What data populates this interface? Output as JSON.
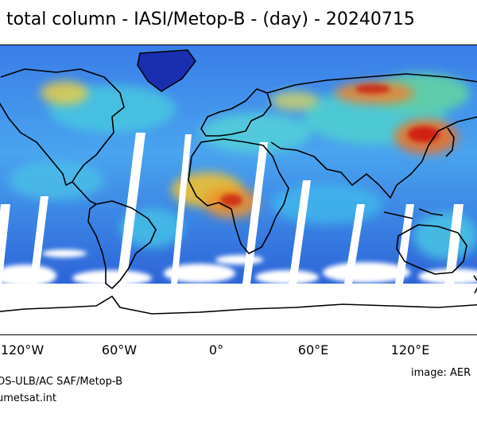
{
  "title": "total column - IASI/Metop-B - (day) - 20240715",
  "x_ticks": [
    "120°W",
    "60°W",
    "0°",
    "60°E",
    "120°E"
  ],
  "credits": {
    "source": "OS-ULB/AC SAF/Metop-B",
    "site": "umetsat.int",
    "image": "image: AER"
  },
  "colors": {
    "ocean_low": "#2f6fe6",
    "mid": "#38c6e8",
    "high": "#f0e030",
    "peak": "#d81e10",
    "coast": "#000000",
    "no_data": "#ffffff"
  }
}
